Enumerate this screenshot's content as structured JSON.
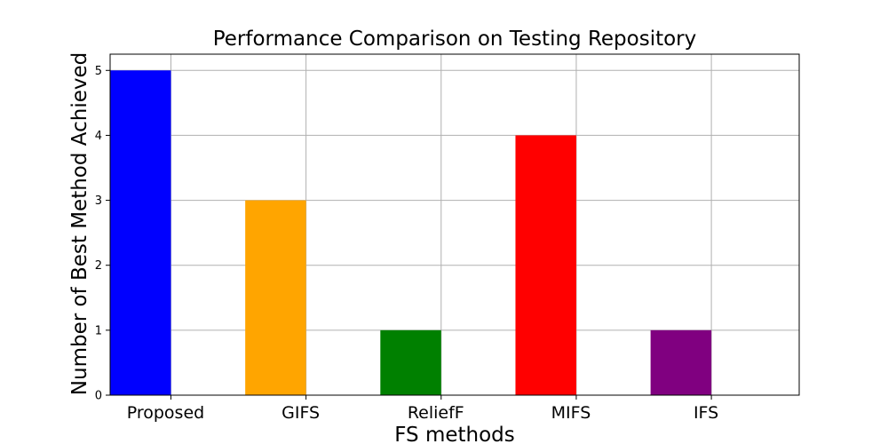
{
  "chart_data": {
    "type": "bar",
    "title": "Performance Comparison on Testing Repository",
    "xlabel": "FS methods",
    "ylabel": "Number of Best Method Achieved",
    "categories": [
      "Proposed",
      "GIFS",
      "ReliefF",
      "MIFS",
      "IFS"
    ],
    "values": [
      5,
      3,
      1,
      4,
      1
    ],
    "colors": [
      "#0000ff",
      "#ffa500",
      "#008000",
      "#ff0000",
      "#800080"
    ],
    "yticks": [
      "0",
      "1",
      "2",
      "3",
      "4",
      "5"
    ],
    "ylim": [
      0,
      5.25
    ],
    "grid": true,
    "legend": "none"
  }
}
